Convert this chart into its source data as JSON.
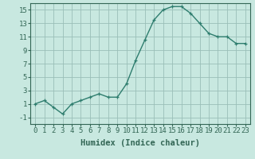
{
  "x": [
    0,
    1,
    2,
    3,
    4,
    5,
    6,
    7,
    8,
    9,
    10,
    11,
    12,
    13,
    14,
    15,
    16,
    17,
    18,
    19,
    20,
    21,
    22,
    23
  ],
  "y": [
    1,
    1.5,
    0.5,
    -0.5,
    1,
    1.5,
    2,
    2.5,
    2,
    2,
    4,
    7.5,
    10.5,
    13.5,
    15,
    15.5,
    15.5,
    14.5,
    13,
    11.5,
    11,
    11,
    10,
    10
  ],
  "line_color": "#2e7d6e",
  "marker": "+",
  "marker_size": 3,
  "background_color": "#c8e8e0",
  "grid_color": "#9abfb8",
  "xlabel": "Humidex (Indice chaleur)",
  "xlim": [
    -0.5,
    23.5
  ],
  "ylim": [
    -2,
    16
  ],
  "yticks": [
    -1,
    1,
    3,
    5,
    7,
    9,
    11,
    13,
    15
  ],
  "xticks": [
    0,
    1,
    2,
    3,
    4,
    5,
    6,
    7,
    8,
    9,
    10,
    11,
    12,
    13,
    14,
    15,
    16,
    17,
    18,
    19,
    20,
    21,
    22,
    23
  ],
  "xlabel_fontsize": 7.5,
  "tick_fontsize": 6.5,
  "line_width": 1.0,
  "spine_color": "#336655"
}
